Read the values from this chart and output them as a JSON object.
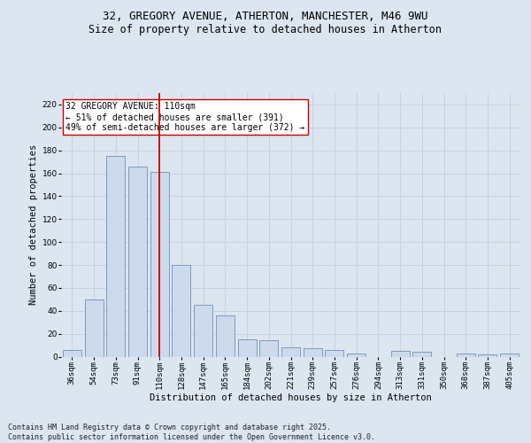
{
  "title_line1": "32, GREGORY AVENUE, ATHERTON, MANCHESTER, M46 9WU",
  "title_line2": "Size of property relative to detached houses in Atherton",
  "xlabel": "Distribution of detached houses by size in Atherton",
  "ylabel": "Number of detached properties",
  "categories": [
    "36sqm",
    "54sqm",
    "73sqm",
    "91sqm",
    "110sqm",
    "128sqm",
    "147sqm",
    "165sqm",
    "184sqm",
    "202sqm",
    "221sqm",
    "239sqm",
    "257sqm",
    "276sqm",
    "294sqm",
    "313sqm",
    "331sqm",
    "350sqm",
    "368sqm",
    "387sqm",
    "405sqm"
  ],
  "values": [
    6,
    50,
    175,
    166,
    161,
    80,
    45,
    36,
    15,
    14,
    8,
    7,
    6,
    3,
    0,
    5,
    4,
    0,
    3,
    2,
    3
  ],
  "bar_color": "#ccdaec",
  "bar_edge_color": "#7090b8",
  "vline_color": "#cc0000",
  "annotation_text": "32 GREGORY AVENUE: 110sqm\n← 51% of detached houses are smaller (391)\n49% of semi-detached houses are larger (372) →",
  "annotation_box_color": "#ffffff",
  "annotation_box_edge": "#cc0000",
  "ylim": [
    0,
    230
  ],
  "yticks": [
    0,
    20,
    40,
    60,
    80,
    100,
    120,
    140,
    160,
    180,
    200,
    220
  ],
  "grid_color": "#c8d0dc",
  "background_color": "#dce6f0",
  "footer_text": "Contains HM Land Registry data © Crown copyright and database right 2025.\nContains public sector information licensed under the Open Government Licence v3.0.",
  "title_fontsize": 9,
  "subtitle_fontsize": 8.5,
  "axis_label_fontsize": 7.5,
  "tick_fontsize": 6.5,
  "annotation_fontsize": 7,
  "footer_fontsize": 6
}
